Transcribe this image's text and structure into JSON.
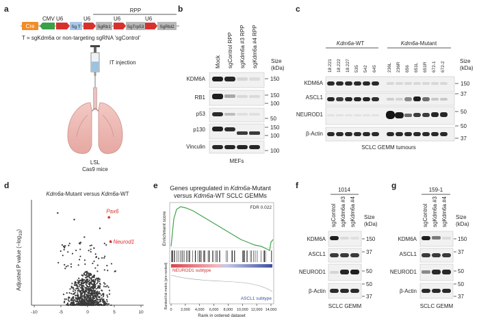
{
  "panels": {
    "a": {
      "letter": "a",
      "rpp": "RPP",
      "cmv": "CMV",
      "u6": "U6",
      "cre": "Cre",
      "sg_t": "Sg T",
      "sgrb1": "SgRb1",
      "sgtrp53": "SgTrp53",
      "sgrbl2": "SgRbl2",
      "t_def": "T = sgKdm6a or non-targeting sgRNA 'sgControl'",
      "it_injection": "IT injection",
      "lsl": "LSL",
      "mice": "Cas9 mice"
    },
    "b": {
      "letter": "b",
      "columns": [
        "Mock",
        "sgControl RPP",
        "sgKdm6a #3 RPP",
        "sgKdm6a #4 RPP"
      ],
      "size_header": "Size",
      "size_unit": "(kDa)",
      "rows": [
        "KDM6A",
        "RB1",
        "p53",
        "p130",
        "Vinculin"
      ],
      "markers": [
        "150",
        "150",
        "100",
        "50",
        "150",
        "100",
        "100"
      ],
      "caption": "MEFs"
    },
    "c": {
      "letter": "c",
      "group_wt_italic": "Kdm6a",
      "group_wt_rest": "-WT",
      "group_mut_italic": "Kdm6a",
      "group_mut_rest": "-Mutant",
      "columns": [
        "18.221",
        "18.222",
        "18.227",
        "535",
        "542",
        "645",
        "236L",
        "236R",
        "656",
        "651L",
        "651R",
        "672-1",
        "672-2"
      ],
      "size_header": "Size",
      "size_unit": "(kDa)",
      "rows": [
        "KDM6A",
        "ASCL1",
        "NEUROD1",
        "β-Actin"
      ],
      "markers": [
        "150",
        "37",
        "50",
        "50",
        "37"
      ],
      "caption": "SCLC GEMM tumours"
    },
    "d": {
      "letter": "d",
      "title_a": "Kdm6a",
      "title_b": "-Mutant versus ",
      "title_c": "Kdm6a",
      "title_d": "-WT",
      "ylabel": "Adjusted P value (−log",
      "ylabel_sub": "10",
      "ylabel_end": ")",
      "xticks": [
        "-10",
        "-5",
        "0",
        "5",
        "10"
      ],
      "highlight": [
        {
          "gene": "Pax6",
          "log2fc": 4.0,
          "neglog10p": 4.0
        },
        {
          "gene": "Neurod1",
          "log2fc": 4.3,
          "neglog10p": 2.9
        }
      ]
    },
    "e": {
      "letter": "e",
      "title1_a": "Genes upregulated in ",
      "title1_b": "Kdm6a",
      "title1_c": "-Mutant",
      "title2_a": "versus ",
      "title2_b": "Kdm6a",
      "title2_c": "-WT SCLC GEMMs",
      "fdr": "FDR 0.022",
      "es_label": "Enrichment score",
      "metric_label": "Ranked list metric (pre-ranked)",
      "neurod1": "NEUROD1 subtype",
      "ascl1": "ASCL1 subtype",
      "xticks": [
        "0",
        "2,000",
        "4,000",
        "6,000",
        "8,000",
        "10,000",
        "12,000",
        "14,000"
      ],
      "xlabel": "Rank in ordered dataset"
    },
    "f": {
      "letter": "f",
      "tumour": "1014",
      "columns": [
        "sgControl",
        "sgKdm6a #3",
        "sgKdm6a #4"
      ],
      "size_header": "Size",
      "size_unit": "(kDa)",
      "rows": [
        "KDM6A",
        "ASCL1",
        "NEUROD1",
        "β-Actin"
      ],
      "markers": [
        "150",
        "37",
        "50",
        "50",
        "37"
      ],
      "caption": "SCLC GEMM"
    },
    "g": {
      "letter": "g",
      "tumour": "159-1",
      "columns": [
        "sgControl",
        "sgKdm6a #3",
        "sgKdm6a #4"
      ],
      "size_header": "Size",
      "size_unit": "(kDa)",
      "rows": [
        "KDM6A",
        "ASCL1",
        "NEUROD1",
        "β-Actin"
      ],
      "markers": [
        "150",
        "37",
        "50",
        "50",
        "37"
      ],
      "caption": "SCLC GEMM"
    }
  }
}
